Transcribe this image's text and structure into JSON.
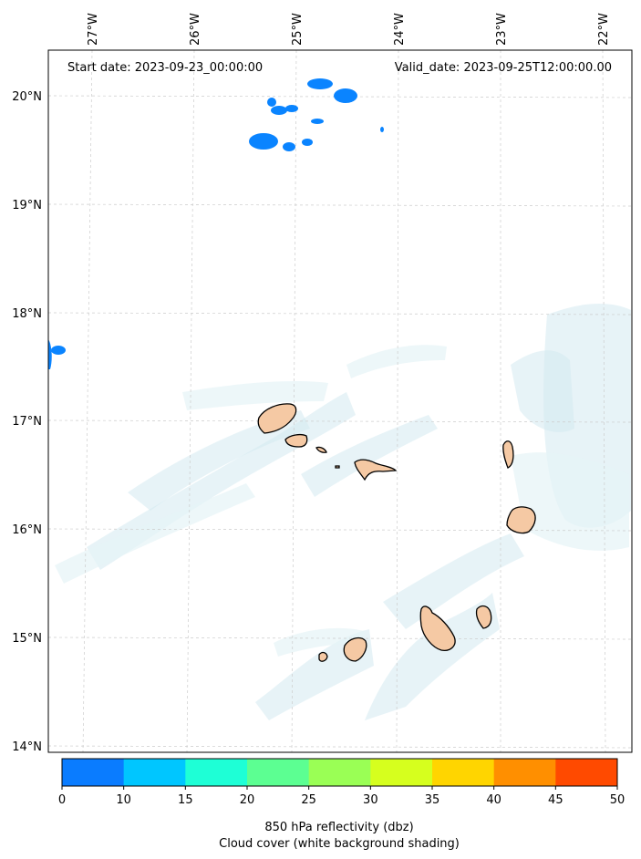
{
  "header": {
    "start_date": "Start date: 2023-09-23_00:00:00",
    "valid_date": "Valid_date: 2023-09-25T12:00:00.00"
  },
  "axes": {
    "lon_labels": [
      "27°W",
      "26°W",
      "25°W",
      "24°W",
      "23°W",
      "22°W"
    ],
    "lat_labels": [
      "20°N",
      "19°N",
      "18°N",
      "17°N",
      "16°N",
      "15°N",
      "14°N"
    ]
  },
  "colorbar": {
    "ticks": [
      "0",
      "10",
      "15",
      "20",
      "25",
      "30",
      "35",
      "40",
      "45",
      "50"
    ],
    "colors": [
      "#0a7cff",
      "#00c6ff",
      "#1effd6",
      "#5cff92",
      "#9aff55",
      "#d6ff1e",
      "#ffd500",
      "#ff8f00",
      "#ff4a00"
    ],
    "label_line1": "850 hPa reflectivity (dbz)",
    "label_line2": "Cloud cover (white background shading)"
  },
  "map_colors": {
    "reflectivity": "#0a84ff",
    "cloud": "#cfe7ee",
    "land_fill": "#f5c9a4",
    "coast": "#000000",
    "grid": "#cccccc"
  }
}
